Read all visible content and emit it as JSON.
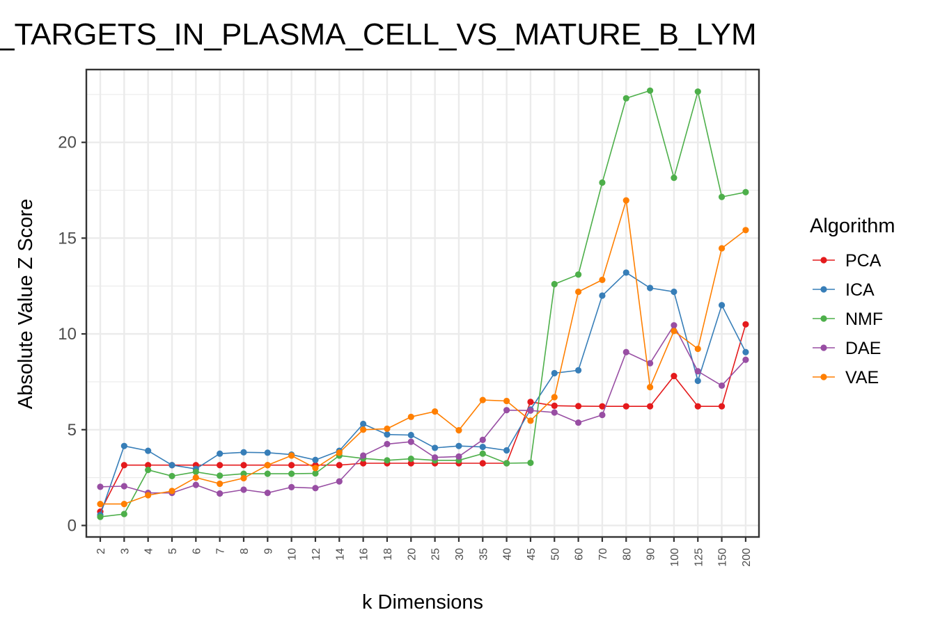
{
  "chart_data": {
    "type": "line",
    "title": "_TARGETS_IN_PLASMA_CELL_VS_MATURE_B_LYM",
    "xlabel": "k Dimensions",
    "ylabel": "Absolute Value Z Score",
    "categories": [
      "2",
      "3",
      "4",
      "5",
      "6",
      "7",
      "8",
      "9",
      "10",
      "12",
      "14",
      "16",
      "18",
      "20",
      "25",
      "30",
      "35",
      "40",
      "45",
      "50",
      "60",
      "70",
      "80",
      "90",
      "100",
      "125",
      "150",
      "200"
    ],
    "yticks": [
      0,
      5,
      10,
      15,
      20
    ],
    "ylim": [
      -0.6,
      23.8
    ],
    "grid": true,
    "legend": {
      "title": "Algorithm",
      "position": "right"
    },
    "series": [
      {
        "name": "PCA",
        "color": "#e41a1c",
        "values": [
          0.72,
          3.15,
          3.15,
          3.15,
          3.15,
          3.15,
          3.15,
          3.15,
          3.15,
          3.15,
          3.15,
          3.25,
          3.25,
          3.25,
          3.25,
          3.25,
          3.25,
          3.25,
          6.45,
          6.25,
          6.23,
          6.22,
          6.22,
          6.22,
          7.8,
          6.22,
          6.22,
          10.5
        ]
      },
      {
        "name": "ICA",
        "color": "#377eb8",
        "values": [
          0.55,
          4.15,
          3.9,
          3.15,
          2.95,
          3.75,
          3.82,
          3.8,
          3.7,
          3.42,
          3.9,
          5.3,
          4.75,
          4.72,
          4.05,
          4.15,
          4.1,
          3.92,
          6.05,
          7.95,
          8.1,
          12.0,
          13.2,
          12.4,
          12.2,
          7.55,
          11.5,
          9.05
        ]
      },
      {
        "name": "NMF",
        "color": "#4daf4a",
        "values": [
          0.45,
          0.6,
          2.9,
          2.58,
          2.8,
          2.6,
          2.7,
          2.7,
          2.7,
          2.72,
          3.65,
          3.5,
          3.4,
          3.48,
          3.4,
          3.4,
          3.75,
          3.25,
          3.27,
          12.6,
          13.1,
          17.9,
          22.3,
          22.7,
          18.15,
          22.65,
          17.15,
          17.4
        ]
      },
      {
        "name": "DAE",
        "color": "#984ea3",
        "values": [
          2.02,
          2.05,
          1.7,
          1.7,
          2.12,
          1.67,
          1.87,
          1.7,
          2.0,
          1.95,
          2.3,
          3.65,
          4.25,
          4.37,
          3.55,
          3.6,
          4.47,
          6.02,
          6.0,
          5.9,
          5.37,
          5.77,
          9.05,
          8.47,
          10.45,
          8.05,
          7.3,
          8.65
        ]
      },
      {
        "name": "VAE",
        "color": "#ff7f00",
        "values": [
          1.12,
          1.12,
          1.58,
          1.8,
          2.5,
          2.18,
          2.47,
          3.15,
          3.65,
          3.0,
          3.8,
          5.0,
          5.05,
          5.67,
          5.95,
          4.97,
          6.55,
          6.5,
          5.47,
          6.7,
          12.2,
          12.82,
          16.97,
          7.22,
          10.15,
          9.22,
          14.47,
          15.42
        ]
      }
    ]
  }
}
